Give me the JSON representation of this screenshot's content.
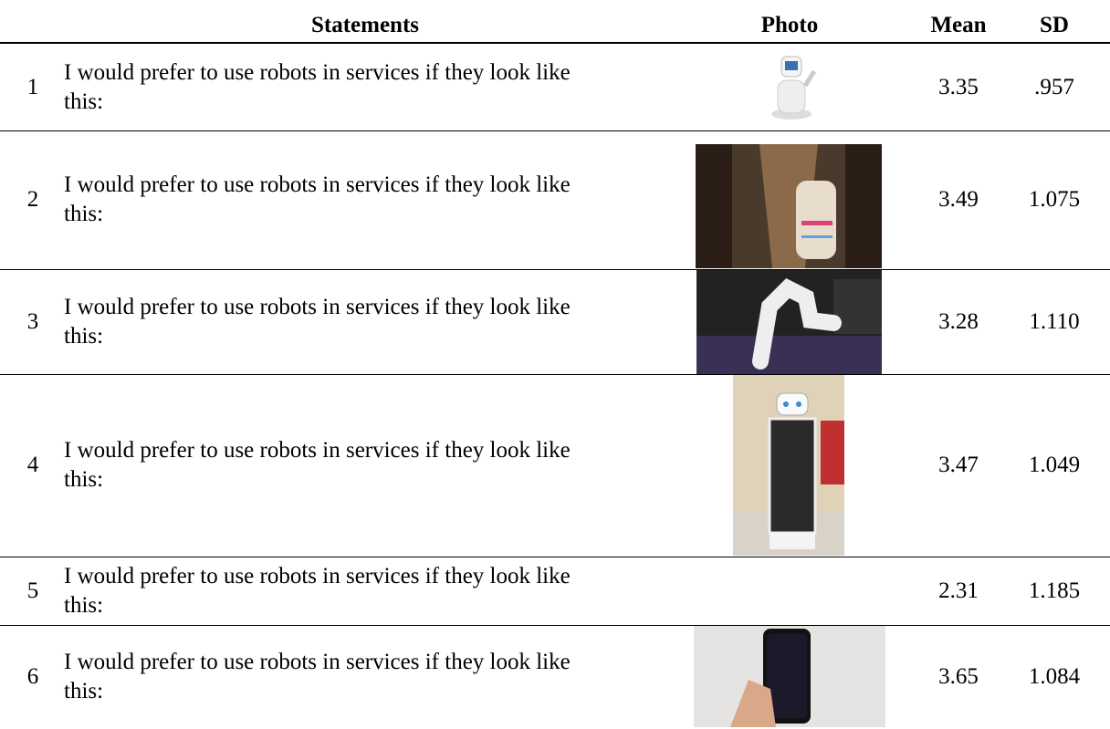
{
  "table": {
    "headers": [
      "Statements",
      "Photo",
      "Mean",
      "SD"
    ],
    "rows": [
      [
        "1",
        "I would prefer to use robots in services if they look like this:",
        "3.35",
        ".957"
      ],
      [
        "2",
        "I would prefer to use robots in services if they look like this:",
        "3.49",
        "1.075"
      ],
      [
        "3",
        "I would prefer to use robots in services if they look like this:",
        "3.28",
        "1.110"
      ],
      [
        "4",
        "I would prefer to use robots in services if they look like this:",
        "3.47",
        "1.049"
      ],
      [
        "5",
        "I would prefer to use robots in services if they look like this:",
        "2.31",
        "1.185"
      ],
      [
        "6",
        "I would prefer to use robots in services if they look like this:",
        "3.65",
        "1.084"
      ]
    ]
  }
}
